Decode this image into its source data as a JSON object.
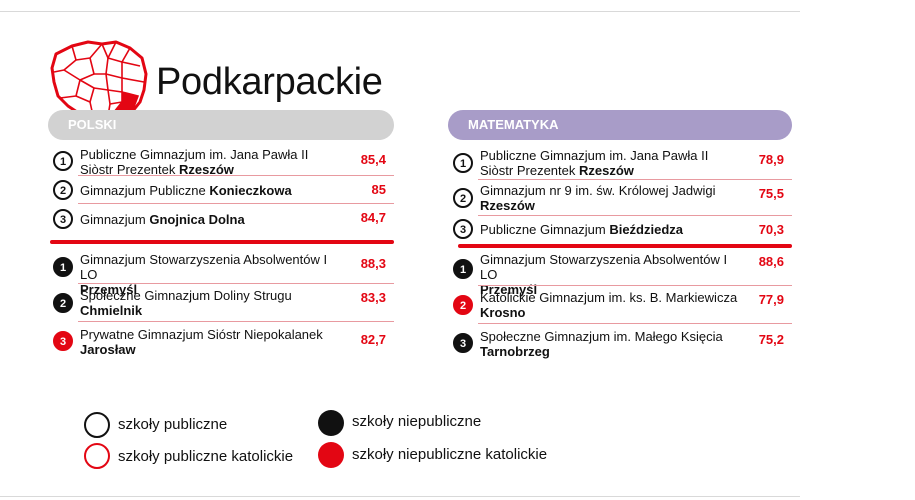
{
  "title": "Podkarpackie",
  "colors": {
    "red": "#e30613",
    "gray_pill": "#d2d2d2",
    "purple_pill": "#a89cc8"
  },
  "icons": {
    "map": "region-map-icon"
  },
  "polski": {
    "header": "POLSKI",
    "public": [
      {
        "rank": "1",
        "name": "Publiczne Gimnazjum im. Jana Pawła II Siòstr Prezentek ",
        "city": "Rzeszów",
        "score": "85,4",
        "type": "public"
      },
      {
        "rank": "2",
        "name": "Gimnazjum Publiczne ",
        "city": "Konieczkowa",
        "score": "85",
        "type": "public"
      },
      {
        "rank": "3",
        "name": "Gimnazjum ",
        "city": "Gnojnica Dolna",
        "score": "84,7",
        "type": "public"
      }
    ],
    "nonpublic": [
      {
        "rank": "1",
        "name": "Gimnazjum Stowarzyszenia Absolwentów I LO",
        "city": "Przemyśl",
        "score": "88,3",
        "type": "nonpublic"
      },
      {
        "rank": "2",
        "name": "Społeczne Gimnazjum Doliny Strugu",
        "city": "Chmielnik",
        "score": "83,3",
        "type": "nonpublic"
      },
      {
        "rank": "3",
        "name": "Prywatne Gimnazjum Sióstr Niepokalanek",
        "city": "Jarosław",
        "score": "82,7",
        "type": "nonpublic-catholic"
      }
    ]
  },
  "matematyka": {
    "header": "MATEMATYKA",
    "public": [
      {
        "rank": "1",
        "name": "Publiczne Gimnazjum im. Jana Pawła II Siòstr Prezentek ",
        "city": "Rzeszów",
        "score": "78,9",
        "type": "public"
      },
      {
        "rank": "2",
        "name": "Gimnazjum nr 9 im. św. Królowej Jadwigi",
        "city": "Rzeszów",
        "score": "75,5",
        "type": "public"
      },
      {
        "rank": "3",
        "name": "Publiczne Gimnazjum ",
        "city": "Bieździedza",
        "score": "70,3",
        "type": "public"
      }
    ],
    "nonpublic": [
      {
        "rank": "1",
        "name": "Gimnazjum Stowarzyszenia Absolwentów I LO",
        "city": "Przemyśl",
        "score": "88,6",
        "type": "nonpublic"
      },
      {
        "rank": "2",
        "name": "Katolickie Gimnazjum im. ks. B. Markiewicza",
        "city": "Krosno",
        "score": "77,9",
        "type": "nonpublic-catholic"
      },
      {
        "rank": "3",
        "name": "Społeczne Gimnazjum im. Małego Księcia",
        "city": "Tarnobrzeg",
        "score": "75,2",
        "type": "nonpublic"
      }
    ]
  },
  "legend": {
    "public": "szkoły publiczne",
    "public_catholic": "szkoły publiczne katolickie",
    "nonpublic": "szkoły niepubliczne",
    "nonpublic_catholic": "szkoły niepubliczne katolickie"
  }
}
